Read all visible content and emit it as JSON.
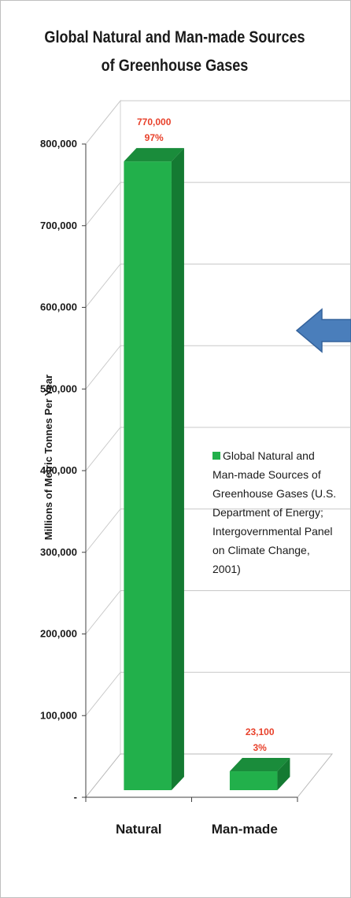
{
  "chart_data": {
    "type": "bar",
    "title": "Global Natural and Man-made Sources of Greenhouse Gases",
    "ylabel": "Millions of Metric Tonnes Per Year",
    "xlabel": "",
    "categories": [
      "Natural",
      "Man-made"
    ],
    "series": [
      {
        "name": "Global Natural and Man-made Sources of Greenhouse Gases (U.S. Department of Energy; Intergovernmental Panel on Climate Change, 2001)",
        "values": [
          770000,
          23100
        ]
      }
    ],
    "data_labels": [
      {
        "value": "770,000",
        "percent": "97%"
      },
      {
        "value": "23,100",
        "percent": "3%"
      }
    ],
    "yticks": [
      "-",
      "100,000",
      "200,000",
      "300,000",
      "400,000",
      "500,000",
      "600,000",
      "700,000",
      "800,000"
    ],
    "ylim": [
      0,
      800000
    ],
    "grid": true,
    "legend_position": "right",
    "style": "3d-column",
    "colors": {
      "bar_front": "#22b04b",
      "bar_top": "#1a8c3b",
      "bar_side": "#147a32",
      "data_label": "#e8402a",
      "arrow": "#4a7ebb"
    }
  }
}
